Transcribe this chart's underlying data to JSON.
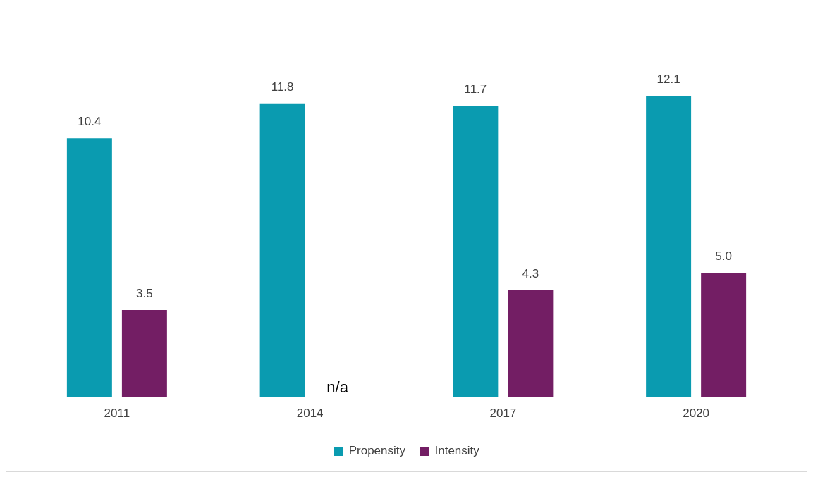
{
  "chart_data": {
    "type": "bar",
    "categories": [
      "2011",
      "2014",
      "2017",
      "2020"
    ],
    "series": [
      {
        "name": "Propensity",
        "color": "#0a9bb0",
        "values": [
          10.4,
          11.8,
          11.7,
          12.1
        ],
        "value_labels": [
          "10.4",
          "11.8",
          "11.7",
          "12.1"
        ]
      },
      {
        "name": "Intensity",
        "color": "#731e64",
        "values": [
          3.5,
          null,
          4.3,
          5.0
        ],
        "value_labels": [
          "3.5",
          "n/a",
          "4.3",
          "5.0"
        ]
      }
    ],
    "tick_labels": "x",
    "grid": false,
    "legend": "bottom"
  }
}
